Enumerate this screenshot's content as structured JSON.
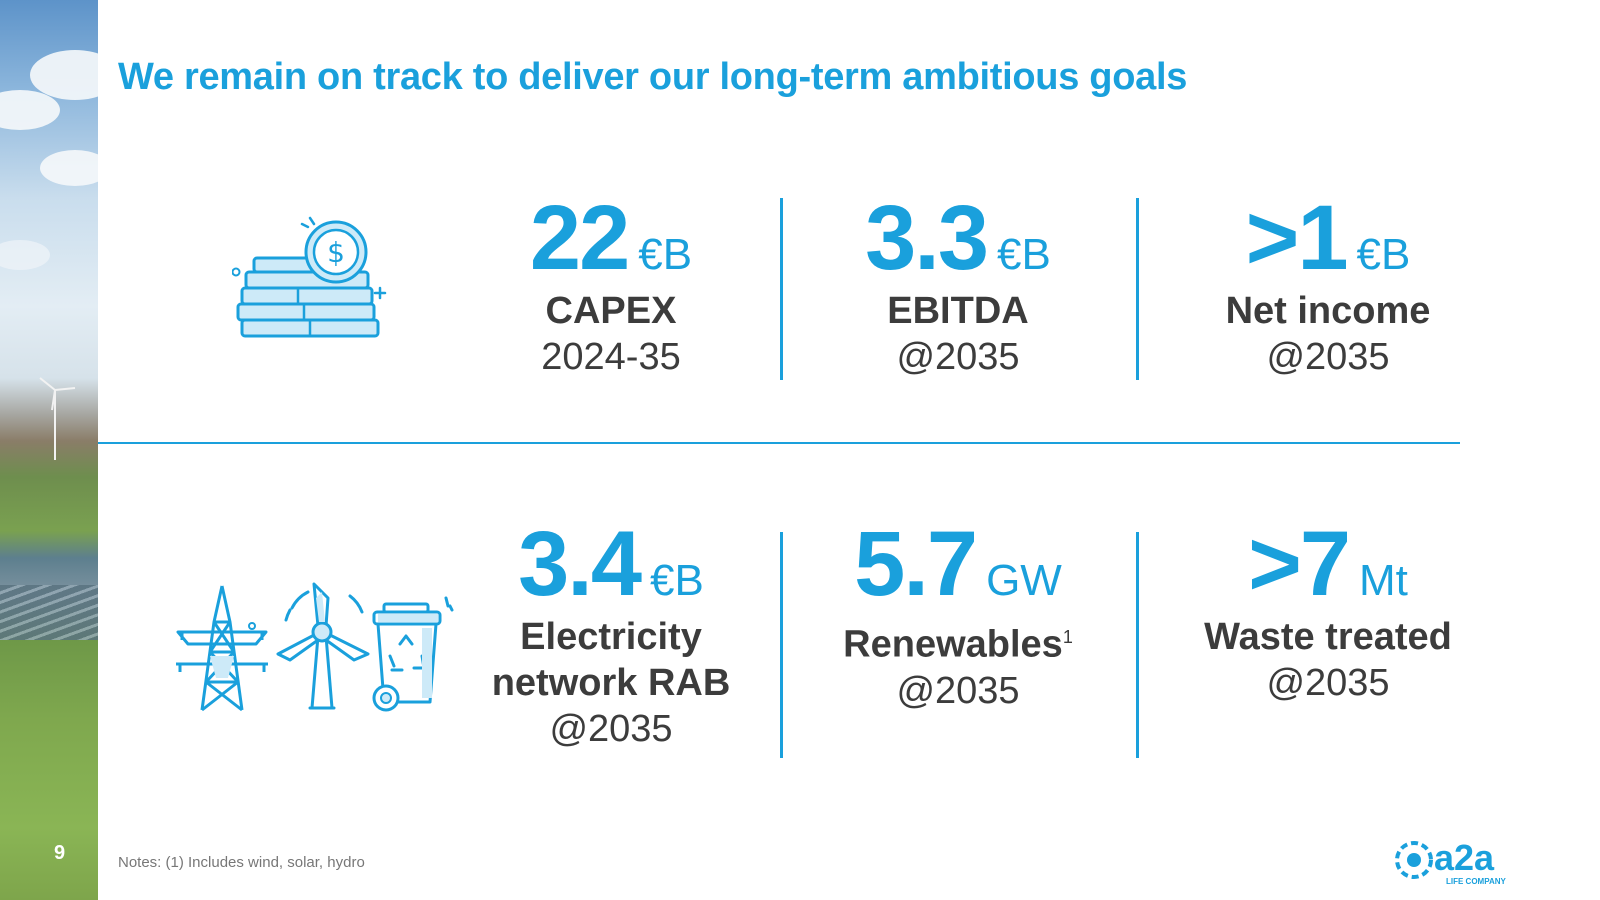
{
  "page": {
    "number": "9"
  },
  "title": "We remain on track to deliver our long-term ambitious goals",
  "top_row": {
    "icon": "money-stack-icon",
    "kpis": [
      {
        "value": "22",
        "unit": "€B",
        "label": "CAPEX",
        "sub": "2024-35"
      },
      {
        "value": "3.3",
        "unit": "€B",
        "label": "EBITDA",
        "sub": "@2035"
      },
      {
        "value": ">1",
        "unit": "€B",
        "label": "Net income",
        "sub": "@2035"
      }
    ]
  },
  "bottom_row": {
    "icons": [
      "power-pylon-icon",
      "wind-turbine-icon",
      "recycling-bin-icon"
    ],
    "kpis": [
      {
        "value": "3.4",
        "unit": "€B",
        "label_line1": "Electricity",
        "label_line2": "network RAB",
        "sub": "@2035"
      },
      {
        "value": "5.7",
        "unit": "GW",
        "label": "Renewables",
        "footnote": "1",
        "sub": "@2035"
      },
      {
        "value": ">7",
        "unit": "Mt",
        "label": "Waste treated",
        "sub": "@2035"
      }
    ]
  },
  "notes": "Notes: (1) Includes wind, solar, hydro",
  "logo": {
    "name": "a2a",
    "tagline": "LIFE COMPANY"
  },
  "colors": {
    "accent": "#1aa0dc",
    "text": "#3c3c3c",
    "notes": "#777777"
  }
}
